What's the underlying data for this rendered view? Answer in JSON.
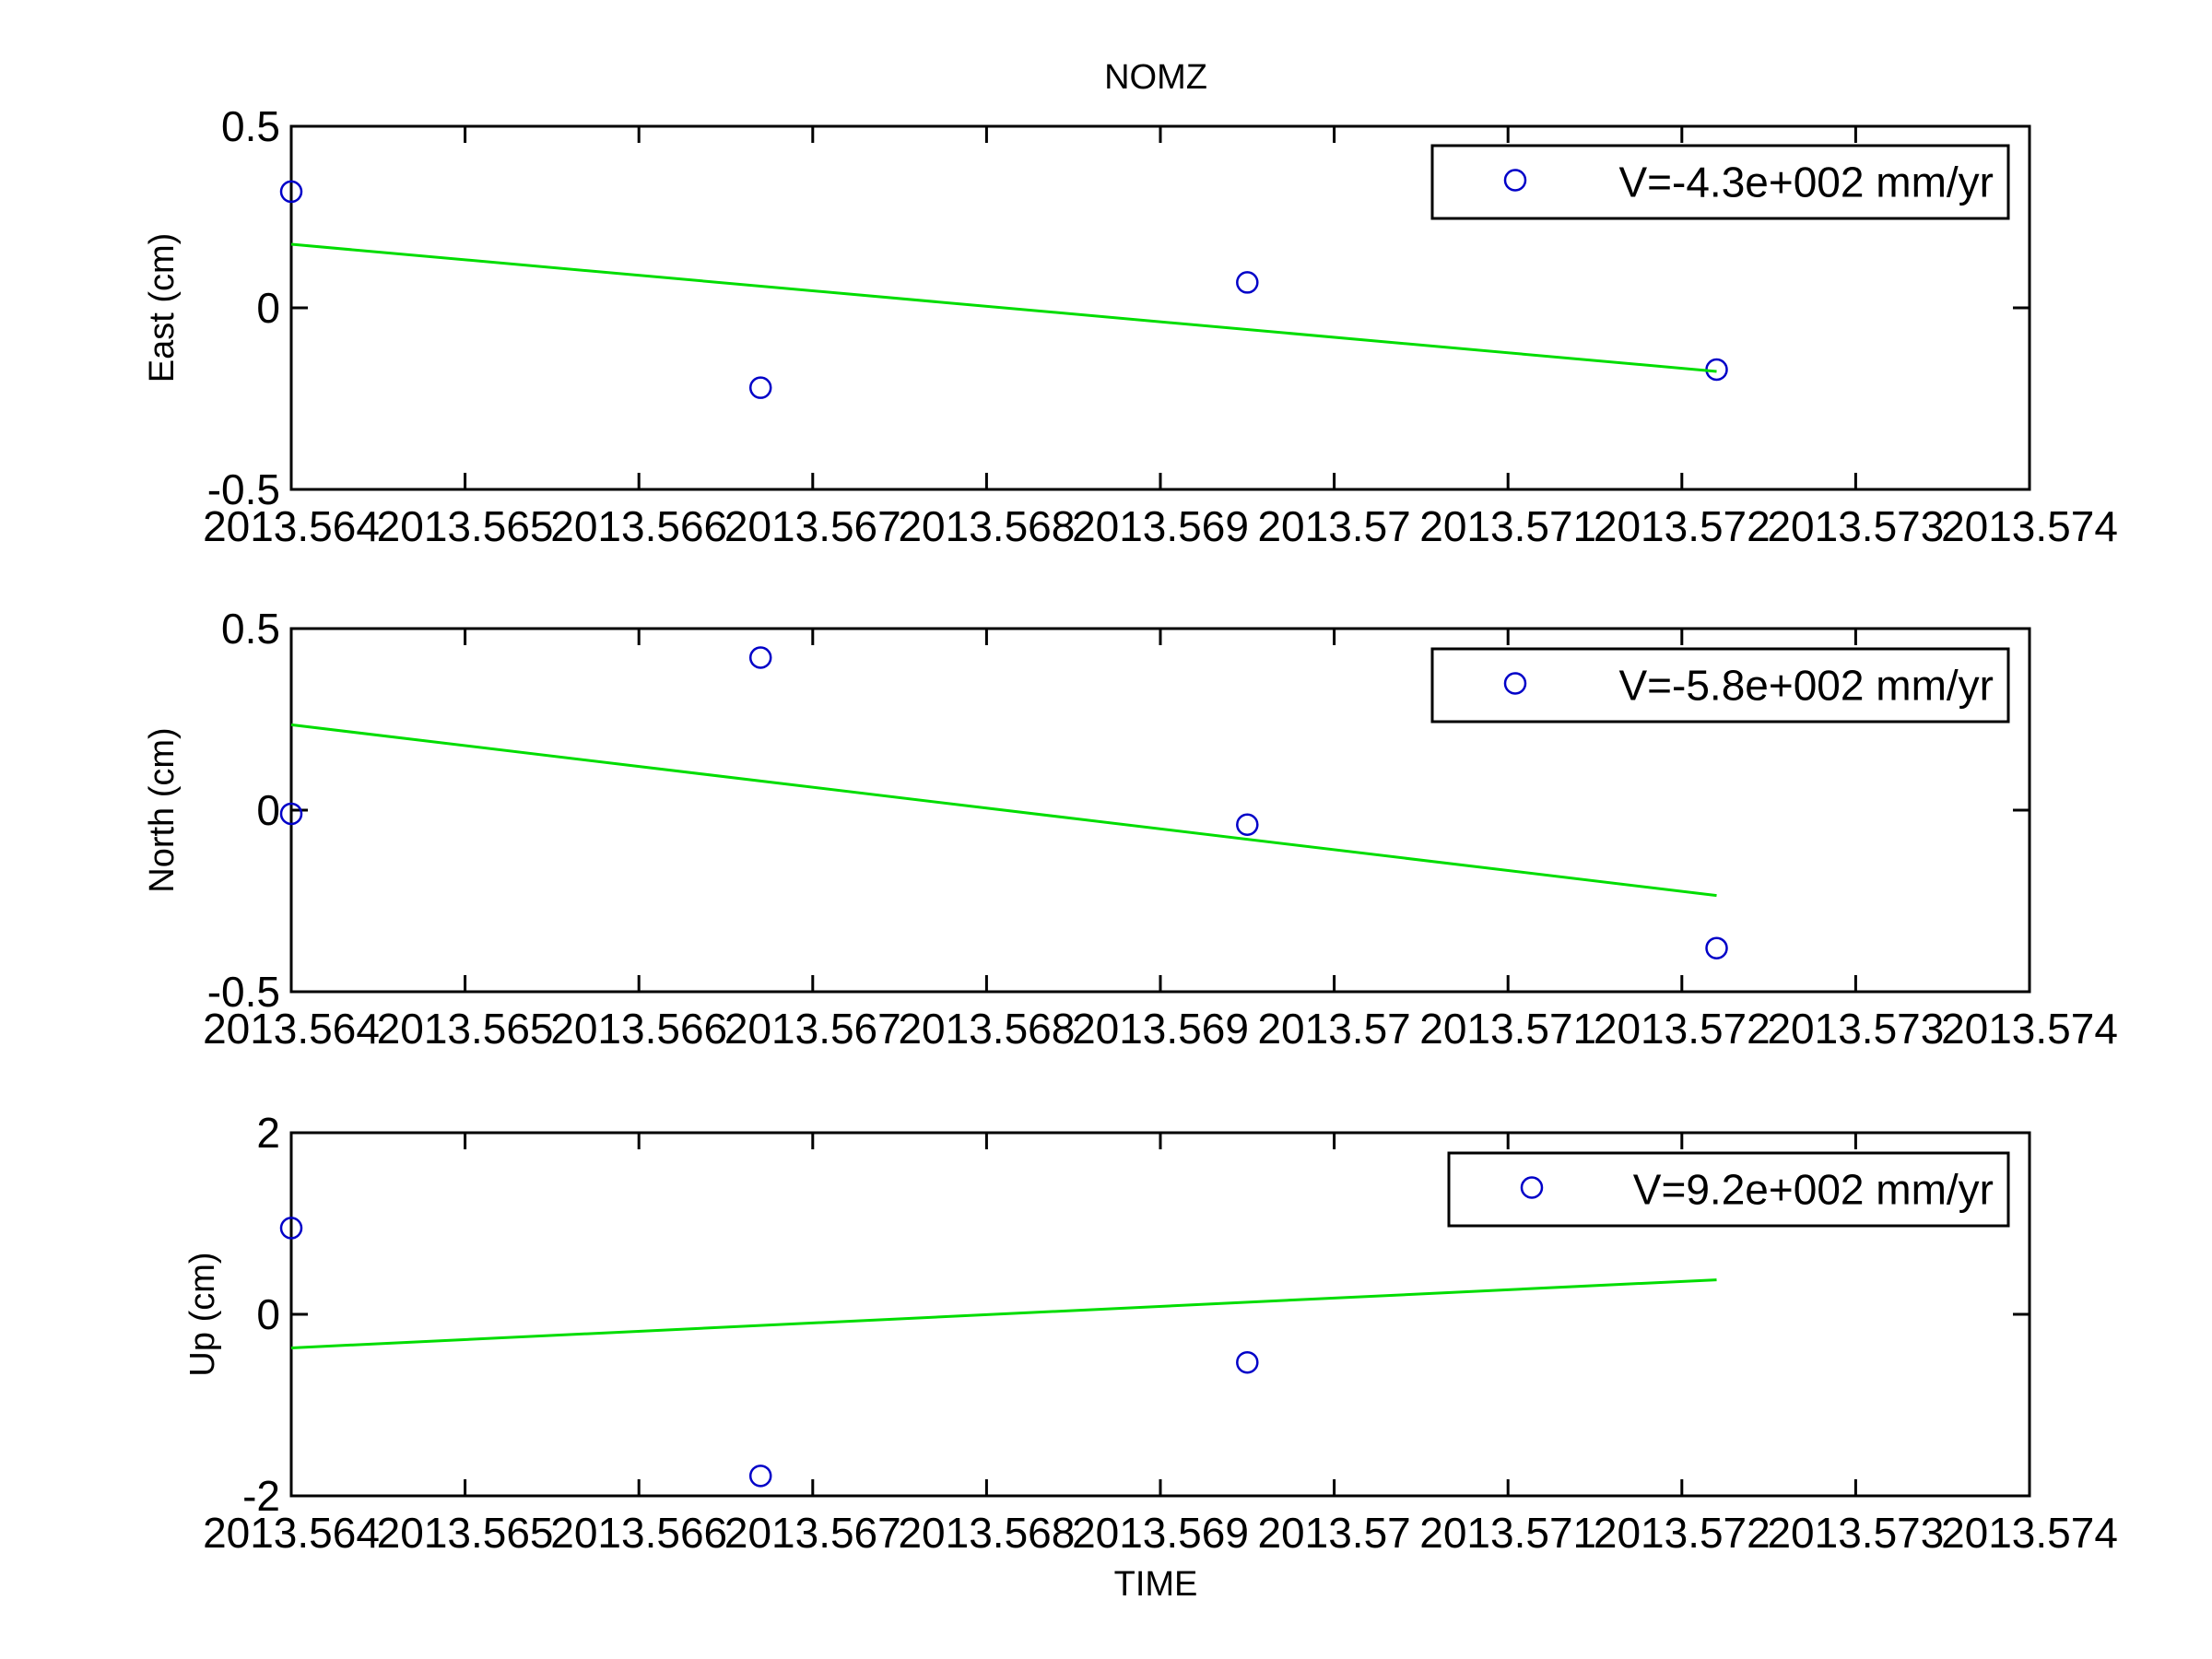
{
  "figure": {
    "title": "NOMZ",
    "xlabel": "TIME"
  },
  "colors": {
    "marker": "#0000c8",
    "fit_line": "#00dd00",
    "axes": "#000000",
    "background": "#ffffff"
  },
  "chart_data": [
    {
      "type": "scatter",
      "title": "NOMZ",
      "xlabel": "",
      "ylabel": "East (cm)",
      "xlim": [
        2013.564,
        2013.574
      ],
      "ylim": [
        -0.5,
        0.5
      ],
      "xticks": [
        2013.564,
        2013.565,
        2013.566,
        2013.567,
        2013.568,
        2013.569,
        2013.57,
        2013.571,
        2013.572,
        2013.573,
        2013.574
      ],
      "xtick_labels": [
        "2013.564",
        "2013.565",
        "2013.566",
        "2013.567",
        "2013.568",
        "2013.569",
        "2013.57",
        "2013.571",
        "2013.572",
        "2013.573",
        "2013.574"
      ],
      "yticks": [
        -0.5,
        0,
        0.5
      ],
      "ytick_labels": [
        "-0.5",
        "0",
        "0.5"
      ],
      "grid": false,
      "legend": "top-right",
      "series": [
        {
          "name": "V=-4.3e+002 mm/yr",
          "kind": "markers",
          "x": [
            2013.564,
            2013.5667,
            2013.5695,
            2013.5722
          ],
          "y": [
            0.32,
            -0.22,
            0.07,
            -0.17
          ]
        },
        {
          "name": "",
          "kind": "line",
          "x": [
            2013.564,
            2013.5722
          ],
          "y": [
            0.175,
            -0.175
          ]
        }
      ]
    },
    {
      "type": "scatter",
      "title": "",
      "xlabel": "",
      "ylabel": "North (cm)",
      "xlim": [
        2013.564,
        2013.574
      ],
      "ylim": [
        -0.5,
        0.5
      ],
      "xticks": [
        2013.564,
        2013.565,
        2013.566,
        2013.567,
        2013.568,
        2013.569,
        2013.57,
        2013.571,
        2013.572,
        2013.573,
        2013.574
      ],
      "xtick_labels": [
        "2013.564",
        "2013.565",
        "2013.566",
        "2013.567",
        "2013.568",
        "2013.569",
        "2013.57",
        "2013.571",
        "2013.572",
        "2013.573",
        "2013.574"
      ],
      "yticks": [
        -0.5,
        0,
        0.5
      ],
      "ytick_labels": [
        "-0.5",
        "0",
        "0.5"
      ],
      "grid": false,
      "legend": "top-right",
      "series": [
        {
          "name": "V=-5.8e+002 mm/yr",
          "kind": "markers",
          "x": [
            2013.564,
            2013.5667,
            2013.5695,
            2013.5722
          ],
          "y": [
            -0.01,
            0.42,
            -0.04,
            -0.38
          ]
        },
        {
          "name": "",
          "kind": "line",
          "x": [
            2013.564,
            2013.5722
          ],
          "y": [
            0.235,
            -0.235
          ]
        }
      ]
    },
    {
      "type": "scatter",
      "title": "",
      "xlabel": "TIME",
      "ylabel": "Up (cm)",
      "xlim": [
        2013.564,
        2013.574
      ],
      "ylim": [
        -2,
        2
      ],
      "xticks": [
        2013.564,
        2013.565,
        2013.566,
        2013.567,
        2013.568,
        2013.569,
        2013.57,
        2013.571,
        2013.572,
        2013.573,
        2013.574
      ],
      "xtick_labels": [
        "2013.564",
        "2013.565",
        "2013.566",
        "2013.567",
        "2013.568",
        "2013.569",
        "2013.57",
        "2013.571",
        "2013.572",
        "2013.573",
        "2013.574"
      ],
      "yticks": [
        -2,
        0,
        2
      ],
      "ytick_labels": [
        "-2",
        "0",
        "2"
      ],
      "grid": false,
      "legend": "top-right",
      "series": [
        {
          "name": "V=9.2e+002 mm/yr",
          "kind": "markers",
          "x": [
            2013.564,
            2013.5667,
            2013.5695,
            2013.5722
          ],
          "y": [
            0.95,
            -1.78,
            -0.53,
            null
          ]
        },
        {
          "name": "",
          "kind": "line",
          "x": [
            2013.564,
            2013.5722
          ],
          "y": [
            -0.37,
            0.38
          ]
        }
      ]
    }
  ]
}
